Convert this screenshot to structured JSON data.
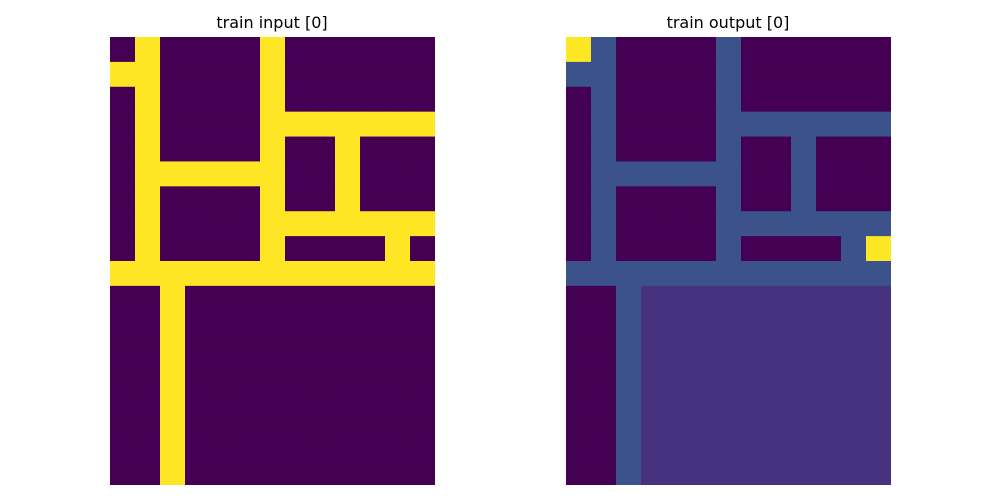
{
  "panels": [
    {
      "title": "train input [0]",
      "grid": [
        [
          0,
          4,
          0,
          0,
          0,
          0,
          4,
          0,
          0,
          0,
          0,
          0,
          0
        ],
        [
          4,
          4,
          0,
          0,
          0,
          0,
          4,
          0,
          0,
          0,
          0,
          0,
          0
        ],
        [
          0,
          4,
          0,
          0,
          0,
          0,
          4,
          0,
          0,
          0,
          0,
          0,
          0
        ],
        [
          0,
          4,
          0,
          0,
          0,
          0,
          4,
          4,
          4,
          4,
          4,
          4,
          4
        ],
        [
          0,
          4,
          0,
          0,
          0,
          0,
          4,
          0,
          0,
          4,
          0,
          0,
          0
        ],
        [
          0,
          4,
          4,
          4,
          4,
          4,
          4,
          0,
          0,
          4,
          0,
          0,
          0
        ],
        [
          0,
          4,
          0,
          0,
          0,
          0,
          4,
          0,
          0,
          4,
          0,
          0,
          0
        ],
        [
          0,
          4,
          0,
          0,
          0,
          0,
          4,
          4,
          4,
          4,
          4,
          4,
          4
        ],
        [
          0,
          4,
          0,
          0,
          0,
          0,
          4,
          0,
          0,
          0,
          0,
          4,
          0
        ],
        [
          4,
          4,
          4,
          4,
          4,
          4,
          4,
          4,
          4,
          4,
          4,
          4,
          4
        ],
        [
          0,
          0,
          4,
          0,
          0,
          0,
          0,
          0,
          0,
          0,
          0,
          0,
          0
        ],
        [
          0,
          0,
          4,
          0,
          0,
          0,
          0,
          0,
          0,
          0,
          0,
          0,
          0
        ],
        [
          0,
          0,
          4,
          0,
          0,
          0,
          0,
          0,
          0,
          0,
          0,
          0,
          0
        ],
        [
          0,
          0,
          4,
          0,
          0,
          0,
          0,
          0,
          0,
          0,
          0,
          0,
          0
        ],
        [
          0,
          0,
          4,
          0,
          0,
          0,
          0,
          0,
          0,
          0,
          0,
          0,
          0
        ],
        [
          0,
          0,
          4,
          0,
          0,
          0,
          0,
          0,
          0,
          0,
          0,
          0,
          0
        ],
        [
          0,
          0,
          4,
          0,
          0,
          0,
          0,
          0,
          0,
          0,
          0,
          0,
          0
        ],
        [
          0,
          0,
          4,
          0,
          0,
          0,
          0,
          0,
          0,
          0,
          0,
          0,
          0
        ]
      ]
    },
    {
      "title": "train output [0]",
      "grid": [
        [
          4,
          2,
          0,
          0,
          0,
          0,
          2,
          0,
          0,
          0,
          0,
          0,
          0
        ],
        [
          2,
          2,
          0,
          0,
          0,
          0,
          2,
          0,
          0,
          0,
          0,
          0,
          0
        ],
        [
          0,
          2,
          0,
          0,
          0,
          0,
          2,
          0,
          0,
          0,
          0,
          0,
          0
        ],
        [
          0,
          2,
          0,
          0,
          0,
          0,
          2,
          2,
          2,
          2,
          2,
          2,
          2
        ],
        [
          0,
          2,
          0,
          0,
          0,
          0,
          2,
          0,
          0,
          2,
          0,
          0,
          0
        ],
        [
          0,
          2,
          2,
          2,
          2,
          2,
          2,
          0,
          0,
          2,
          0,
          0,
          0
        ],
        [
          0,
          2,
          0,
          0,
          0,
          0,
          2,
          0,
          0,
          2,
          0,
          0,
          0
        ],
        [
          0,
          2,
          0,
          0,
          0,
          0,
          2,
          2,
          2,
          2,
          2,
          2,
          2
        ],
        [
          0,
          2,
          0,
          0,
          0,
          0,
          2,
          0,
          0,
          0,
          0,
          2,
          4
        ],
        [
          2,
          2,
          2,
          2,
          2,
          2,
          2,
          2,
          2,
          2,
          2,
          2,
          2
        ],
        [
          0,
          0,
          2,
          1,
          1,
          1,
          1,
          1,
          1,
          1,
          1,
          1,
          1
        ],
        [
          0,
          0,
          2,
          1,
          1,
          1,
          1,
          1,
          1,
          1,
          1,
          1,
          1
        ],
        [
          0,
          0,
          2,
          1,
          1,
          1,
          1,
          1,
          1,
          1,
          1,
          1,
          1
        ],
        [
          0,
          0,
          2,
          1,
          1,
          1,
          1,
          1,
          1,
          1,
          1,
          1,
          1
        ],
        [
          0,
          0,
          2,
          1,
          1,
          1,
          1,
          1,
          1,
          1,
          1,
          1,
          1
        ],
        [
          0,
          0,
          2,
          1,
          1,
          1,
          1,
          1,
          1,
          1,
          1,
          1,
          1
        ],
        [
          0,
          0,
          2,
          1,
          1,
          1,
          1,
          1,
          1,
          1,
          1,
          1,
          1
        ],
        [
          0,
          0,
          2,
          1,
          1,
          1,
          1,
          1,
          1,
          1,
          1,
          1,
          1
        ]
      ]
    }
  ],
  "palette": {
    "0": "#440154",
    "1": "#46327e",
    "2": "#3b528b",
    "4": "#fde725"
  }
}
